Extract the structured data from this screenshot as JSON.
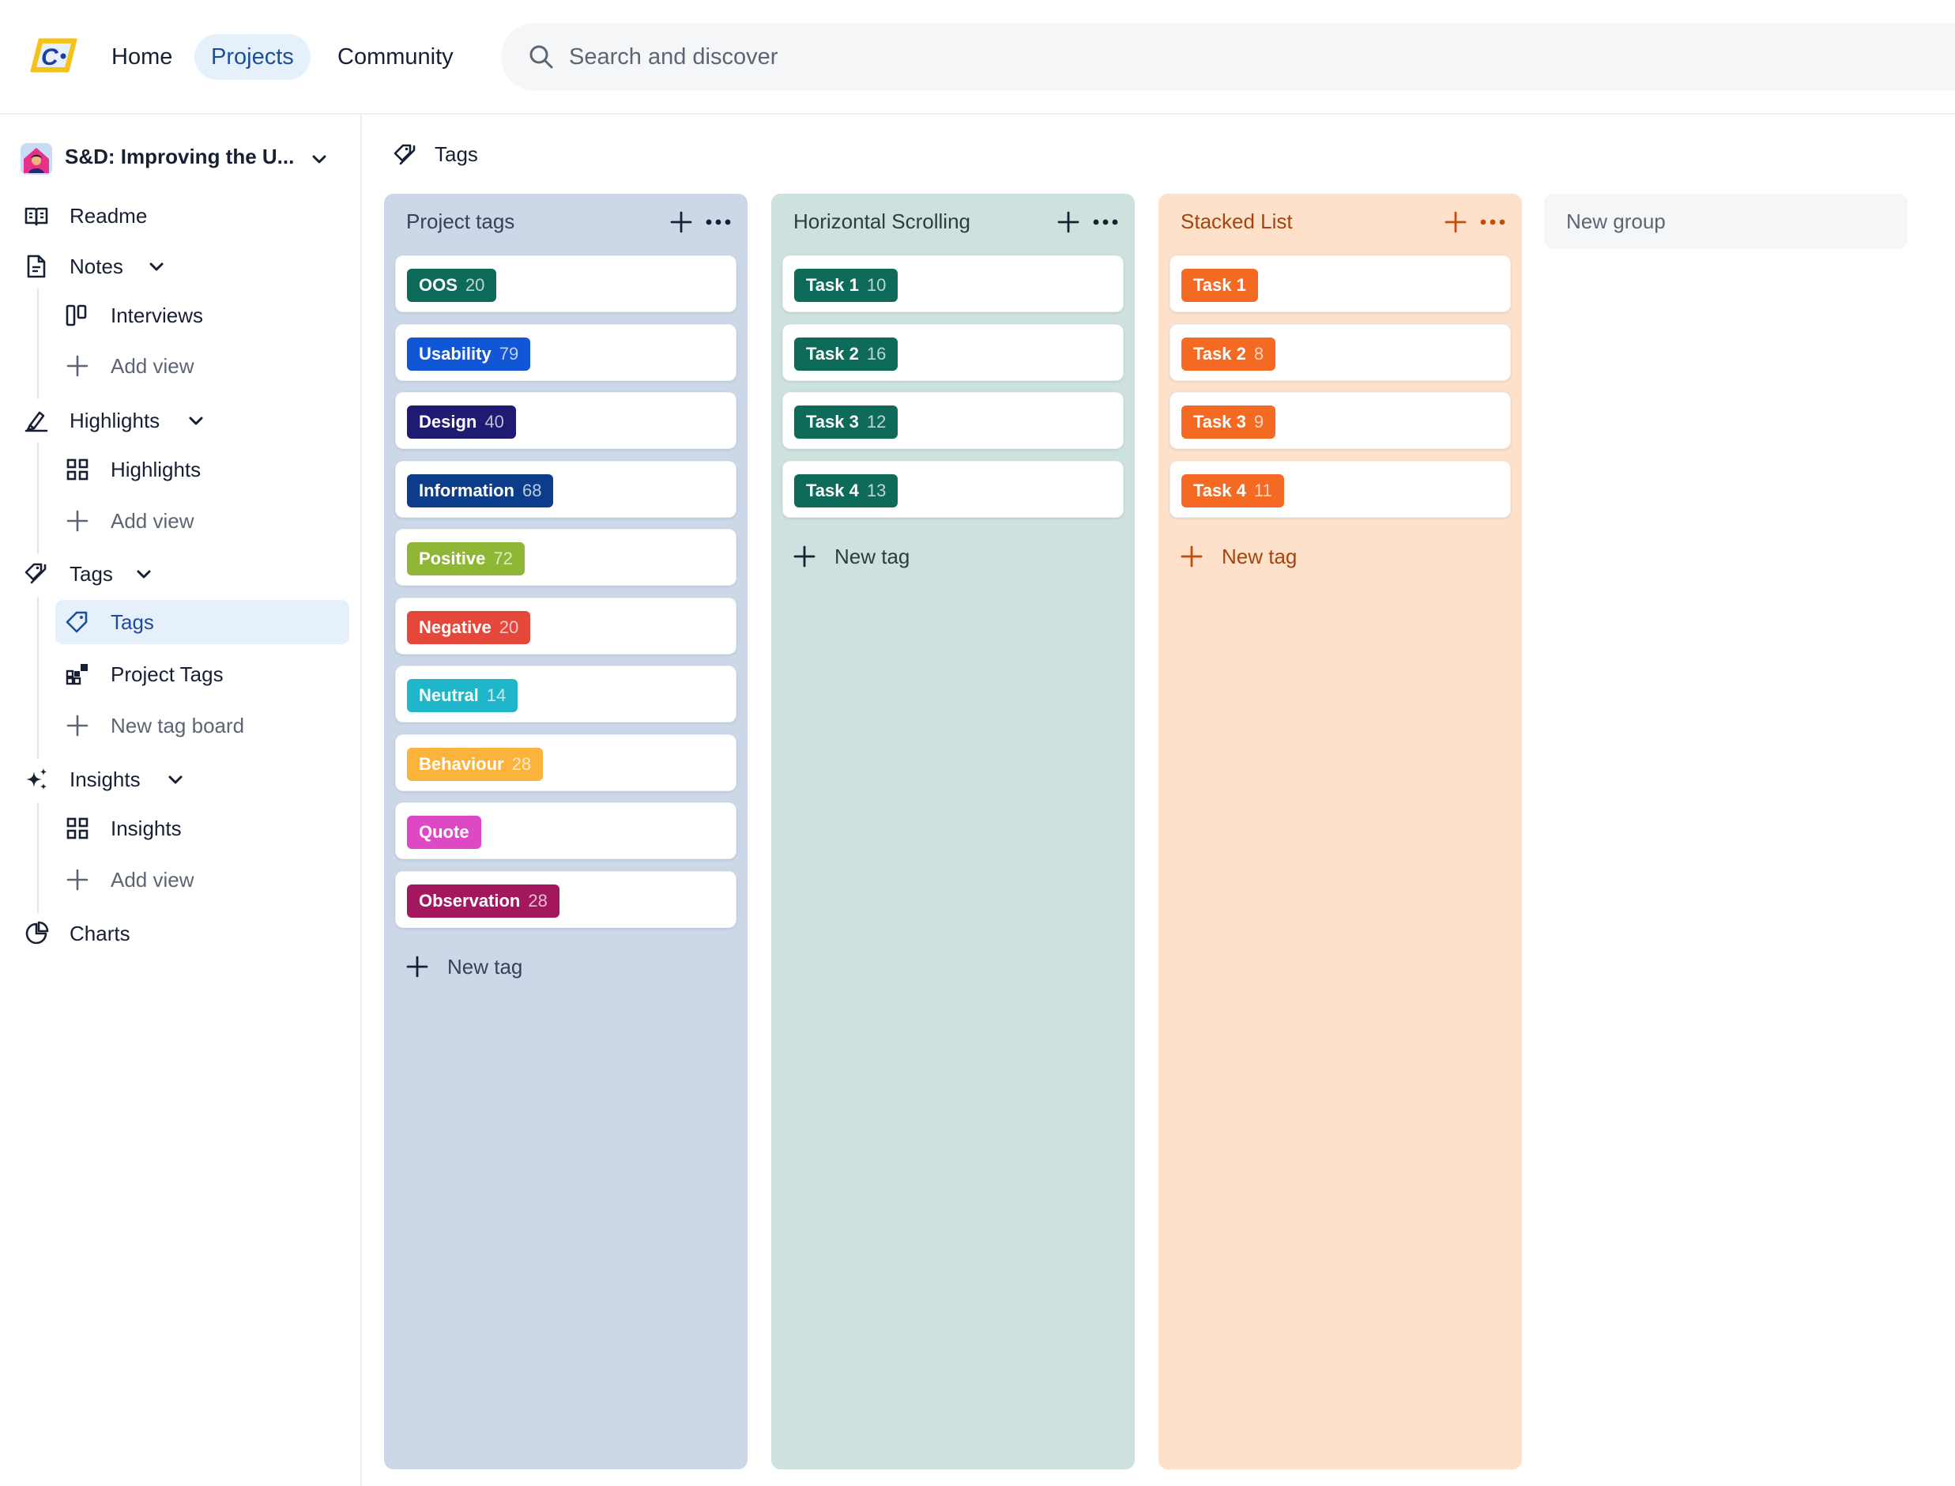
{
  "header": {
    "nav": [
      {
        "label": "Home"
      },
      {
        "label": "Projects"
      },
      {
        "label": "Community"
      }
    ],
    "search": {
      "placeholder": "Search and discover",
      "value": ""
    }
  },
  "sidebar": {
    "project_name": "S&D: Improving the U...",
    "sections": {
      "readme": "Readme",
      "notes": "Notes",
      "notes_interviews": "Interviews",
      "notes_add": "Add view",
      "highlights": "Highlights",
      "highlights_view": "Highlights",
      "highlights_add": "Add view",
      "tags": "Tags",
      "tags_view": "Tags",
      "tags_project": "Project Tags",
      "tags_new_board": "New tag board",
      "insights": "Insights",
      "insights_view": "Insights",
      "insights_add": "Add view",
      "charts": "Charts"
    }
  },
  "main": {
    "breadcrumb": "Tags",
    "columns": [
      {
        "title": "Project tags",
        "bg": "#ccd8e8",
        "title_color": "#34425a",
        "icon_color": "#172033",
        "new_tag": "New tag",
        "tags": [
          {
            "name": "OOS",
            "count": "20",
            "color": "#0e6b5a"
          },
          {
            "name": "Usability",
            "count": "79",
            "color": "#1256d8"
          },
          {
            "name": "Design",
            "count": "40",
            "color": "#1f1a72"
          },
          {
            "name": "Information",
            "count": "68",
            "color": "#0c3d8a"
          },
          {
            "name": "Positive",
            "count": "72",
            "color": "#8fb635"
          },
          {
            "name": "Negative",
            "count": "20",
            "color": "#e5483b"
          },
          {
            "name": "Neutral",
            "count": "14",
            "color": "#1fb6c9"
          },
          {
            "name": "Behaviour",
            "count": "28",
            "color": "#fbb33c"
          },
          {
            "name": "Quote",
            "count": "",
            "color": "#df48c4"
          },
          {
            "name": "Observation",
            "count": "28",
            "color": "#a3175e"
          }
        ]
      },
      {
        "title": "Horizontal Scrolling",
        "bg": "#cde2df",
        "title_color": "#2d3d3b",
        "icon_color": "#172033",
        "new_tag": "New tag",
        "tags": [
          {
            "name": "Task 1",
            "count": "10",
            "color": "#0e6b5a"
          },
          {
            "name": "Task 2",
            "count": "16",
            "color": "#0e6b5a"
          },
          {
            "name": "Task 3",
            "count": "12",
            "color": "#0e6b5a"
          },
          {
            "name": "Task 4",
            "count": "13",
            "color": "#0e6b5a"
          }
        ]
      },
      {
        "title": "Stacked List",
        "bg": "#fde1cb",
        "title_color": "#a3450d",
        "icon_color": "#c24d0c",
        "new_tag": "New tag",
        "tags": [
          {
            "name": "Task 1",
            "count": "",
            "color": "#f56a22"
          },
          {
            "name": "Task 2",
            "count": "8",
            "color": "#f56a22"
          },
          {
            "name": "Task 3",
            "count": "9",
            "color": "#f56a22"
          },
          {
            "name": "Task 4",
            "count": "11",
            "color": "#f56a22"
          }
        ]
      }
    ],
    "new_group": "New group"
  }
}
